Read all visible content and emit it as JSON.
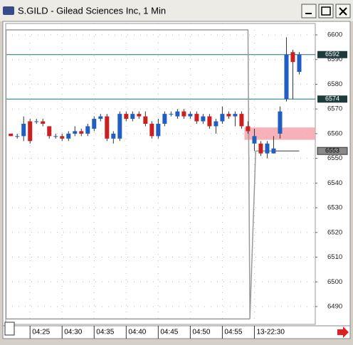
{
  "window": {
    "title": "S.GILD - Gilead Sciences Inc, 1 Min"
  },
  "chart_data": {
    "type": "candlestick",
    "open": [
      6560,
      6559,
      6559,
      6565,
      6565,
      6565,
      6563,
      6559,
      6559,
      6558,
      6560,
      6561,
      6560,
      6562,
      6566,
      6567,
      6558,
      6558,
      6568,
      6566,
      6568,
      6567,
      6564,
      6559,
      6564,
      6568,
      6567,
      6569,
      6567,
      6568,
      6565,
      6567,
      6563,
      6565,
      6568,
      6567,
      6568,
      6563,
      6556,
      6556,
      6552,
      6552,
      6560,
      6574,
      6593,
      6585
    ],
    "high": [
      6560,
      6560,
      6567,
      6566,
      6566,
      6566,
      6563,
      6560,
      6560,
      6561,
      6563,
      6562,
      6564,
      6567,
      6568,
      6568,
      6561,
      6569,
      6569,
      6569,
      6569,
      6569,
      6565,
      6566,
      6569,
      6569,
      6570,
      6570,
      6569,
      6569,
      6568,
      6568,
      6566,
      6571,
      6569,
      6569,
      6569,
      6565,
      6562,
      6557,
      6557,
      6559,
      6571,
      6599,
      6594,
      6593
    ],
    "low": [
      6559,
      6558,
      6557,
      6556,
      6564,
      6563,
      6558,
      6558,
      6557,
      6557,
      6559,
      6559,
      6559,
      6561,
      6565,
      6557,
      6556,
      6557,
      6565,
      6565,
      6566,
      6563,
      6558,
      6558,
      6563,
      6567,
      6566,
      6566,
      6566,
      6564,
      6564,
      6562,
      6560,
      6564,
      6566,
      6563,
      6562,
      6560,
      6553,
      6551,
      6550,
      6552,
      6558,
      6573,
      6574,
      6584
    ],
    "close": [
      6559,
      6559,
      6564,
      6557,
      6565,
      6564,
      6559,
      6559,
      6558,
      6560,
      6561,
      6560,
      6563,
      6566,
      6567,
      6558,
      6560,
      6568,
      6566,
      6568,
      6567,
      6564,
      6559,
      6564,
      6568,
      6568,
      6569,
      6567,
      6568,
      6565,
      6567,
      6563,
      6565,
      6568,
      6567,
      6568,
      6563,
      6561,
      6559,
      6552,
      6556,
      6554,
      6569,
      6592,
      6589,
      6592
    ],
    "up_color": "#1f5fc4",
    "down_color": "#cc2020",
    "ylim": [
      6482.8,
      6604.6
    ],
    "yticks": [
      6490,
      6500,
      6510,
      6520,
      6530,
      6540,
      6550,
      6560,
      6570,
      6580,
      6590,
      6600
    ],
    "xlim": [
      -0.8,
      47.5
    ],
    "xticks": [
      {
        "value": 3,
        "label": "04:25"
      },
      {
        "value": 8,
        "label": "04:30"
      },
      {
        "value": 13,
        "label": "04:35"
      },
      {
        "value": 18,
        "label": "04:40"
      },
      {
        "value": 23,
        "label": "04:45"
      },
      {
        "value": 28,
        "label": "04:50"
      },
      {
        "value": 33,
        "label": "04:55"
      },
      {
        "value": 38,
        "label": "13-22:30"
      }
    ],
    "grid": true,
    "levels": [
      6592,
      6574
    ],
    "level_color": "#1a7474",
    "last_price": 6553,
    "highlight": {
      "x_from": 37,
      "range": [
        6557.5,
        6562.5
      ],
      "color": "#f4a4ac"
    },
    "overlay": {
      "color": "#9a9a9a",
      "x": [
        37.3,
        -0.75,
        -0.75,
        37,
        37.3,
        38.2,
        45
      ],
      "values": [
        6485,
        6485,
        6602,
        6602,
        6485,
        6553,
        6553
      ]
    }
  }
}
